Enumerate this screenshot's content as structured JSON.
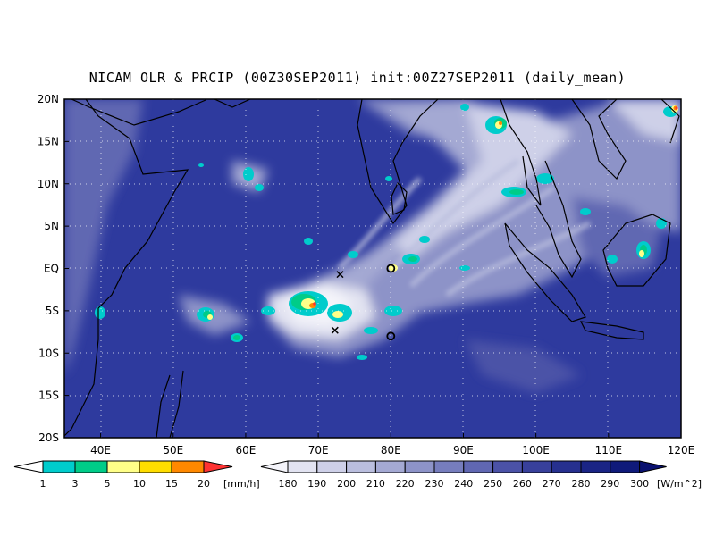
{
  "title": "NICAM OLR & PRCIP (00Z30SEP2011) init:00Z27SEP2011 (daily_mean)",
  "map": {
    "lon_range": [
      35,
      120
    ],
    "lat_range": [
      -20,
      20
    ],
    "lat_ticks": [
      "20N",
      "15N",
      "10N",
      "5N",
      "EQ",
      "5S",
      "10S",
      "15S",
      "20S"
    ],
    "lon_ticks": [
      "40E",
      "50E",
      "60E",
      "70E",
      "80E",
      "90E",
      "100E",
      "110E",
      "120E"
    ],
    "ocean_color": "#2e3a9e",
    "markers": [
      {
        "symbol": "x",
        "lon": 73,
        "lat": -0.7
      },
      {
        "symbol": "x",
        "lon": 72.3,
        "lat": -7.3
      },
      {
        "symbol": "o",
        "lon": 80,
        "lat": 0
      },
      {
        "symbol": "o",
        "lon": 80,
        "lat": -8
      }
    ]
  },
  "precip_colorbar": {
    "labels": [
      "1",
      "3",
      "5",
      "10",
      "15",
      "20"
    ],
    "unit": "[mm/h]",
    "colors": [
      "#00cccc",
      "#00cc88",
      "#ffff88",
      "#ffdd00",
      "#ff8800",
      "#ff3333"
    ]
  },
  "olr_colorbar": {
    "labels": [
      "180",
      "190",
      "200",
      "210",
      "220",
      "230",
      "240",
      "250",
      "260",
      "270",
      "280",
      "290",
      "300"
    ],
    "unit": "[W/m^2]",
    "colors": [
      "#f4f4fa",
      "#e2e3f1",
      "#ced0e8",
      "#babede",
      "#a4a9d3",
      "#8d93c8",
      "#767dbd",
      "#6067b2",
      "#4b52a7",
      "#38409b",
      "#26308f",
      "#1a2485",
      "#0f1a7a",
      "#0a1170"
    ]
  }
}
